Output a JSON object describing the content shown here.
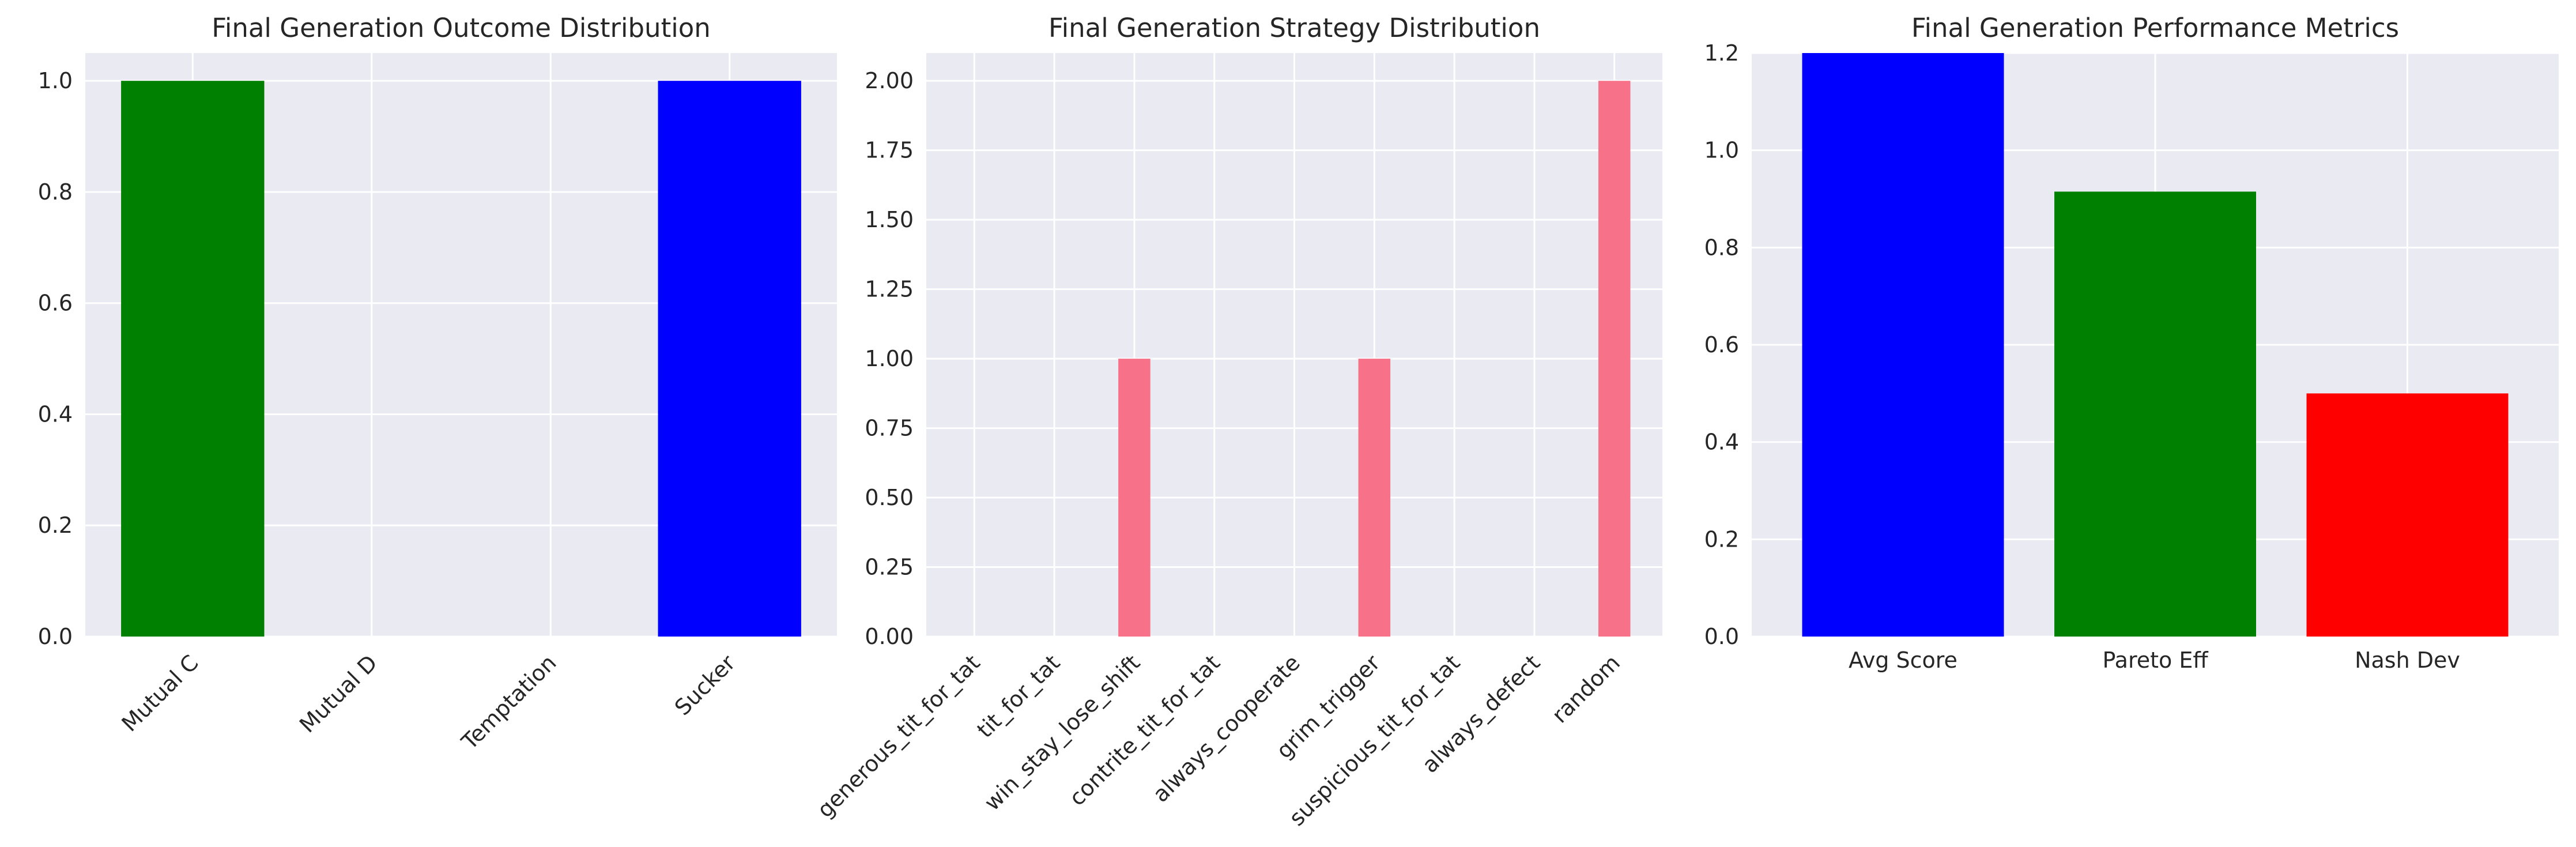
{
  "chart_data": [
    {
      "type": "bar",
      "title": "Final Generation Outcome Distribution",
      "xlabel": "",
      "ylabel": "",
      "categories": [
        "Mutual C",
        "Mutual D",
        "Temptation",
        "Sucker"
      ],
      "values": [
        1,
        0,
        0,
        1
      ],
      "colors": [
        "#008000",
        "#008000",
        "#ff0000",
        "#0000ff"
      ],
      "ylim": [
        0,
        1.05
      ],
      "yticks": [
        0.0,
        0.2,
        0.4,
        0.6,
        0.8,
        1.0
      ],
      "ytick_labels": [
        "0.0",
        "0.2",
        "0.4",
        "0.6",
        "0.8",
        "1.0"
      ],
      "xtick_rotation": 45,
      "grid": true
    },
    {
      "type": "bar",
      "title": "Final Generation Strategy Distribution",
      "xlabel": "",
      "ylabel": "",
      "categories": [
        "generous_tit_for_tat",
        "tit_for_tat",
        "win_stay_lose_shift",
        "contrite_tit_for_tat",
        "always_cooperate",
        "grim_trigger",
        "suspicious_tit_for_tat",
        "always_defect",
        "random"
      ],
      "values": [
        0,
        0,
        1,
        0,
        0,
        1,
        0,
        0,
        2
      ],
      "colors": [
        "#f77189"
      ],
      "ylim": [
        0,
        2.1
      ],
      "yticks": [
        0.0,
        0.25,
        0.5,
        0.75,
        1.0,
        1.25,
        1.5,
        1.75,
        2.0
      ],
      "ytick_labels": [
        "0.00",
        "0.25",
        "0.50",
        "0.75",
        "1.00",
        "1.25",
        "1.50",
        "1.75",
        "2.00"
      ],
      "xtick_rotation": 45,
      "grid": true
    },
    {
      "type": "bar",
      "title": "Final Generation Performance Metrics",
      "xlabel": "",
      "ylabel": "",
      "categories": [
        "Avg Score",
        "Pareto Eff",
        "Nash Dev"
      ],
      "values": [
        1.25,
        0.915,
        0.5
      ],
      "colors": [
        "#0000ff",
        "#008000",
        "#ff0000"
      ],
      "ylim": [
        0,
        1.2
      ],
      "yticks": [
        0.0,
        0.2,
        0.4,
        0.6,
        0.8,
        1.0,
        1.2
      ],
      "ytick_labels": [
        "0.0",
        "0.2",
        "0.4",
        "0.6",
        "0.8",
        "1.0",
        "1.2"
      ],
      "xtick_rotation": 0,
      "grid": true
    }
  ],
  "style": {
    "axes_background": "#eaeaf2",
    "grid_color": "#ffffff",
    "text_color": "#262626"
  }
}
